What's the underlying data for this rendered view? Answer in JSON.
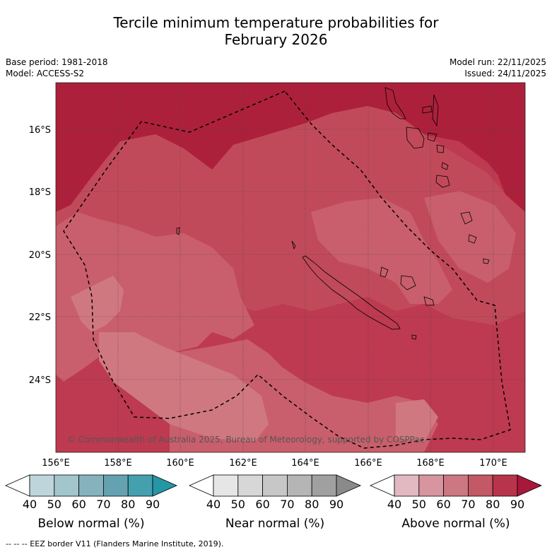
{
  "title": {
    "line1": "Tercile minimum temperature probabilities for",
    "line2": "February 2026"
  },
  "meta": {
    "base_period": "Base period: 1981-2018",
    "model": "Model: ACCESS-S2",
    "model_run": "Model run: 22/11/2025",
    "issued": "Issued: 24/11/2025"
  },
  "map": {
    "lat_labels": [
      "16°S",
      "18°S",
      "20°S",
      "22°S",
      "24°S"
    ],
    "lon_labels": [
      "156°E",
      "158°E",
      "160°E",
      "162°E",
      "164°E",
      "166°E",
      "168°E",
      "170°E"
    ],
    "copyright": "© Commonwealth of Australia 2025, Bureau of Meteorology, supported by COSPPac",
    "colors": {
      "p40_50": "#d8838c",
      "p50_60": "#c95f6c",
      "p60_70": "#c14a5a",
      "p70_80": "#b8354a",
      "p80_90": "#ad203b"
    }
  },
  "colorbars": {
    "tick_values": [
      "40",
      "50",
      "60",
      "70",
      "80",
      "90"
    ],
    "below": {
      "label": "Below normal (%)",
      "colors": [
        "#ffffff",
        "#bed5dc",
        "#a3c5cc",
        "#85b2bd",
        "#65a2b1",
        "#449fae",
        "#2596a6"
      ]
    },
    "near": {
      "label": "Near normal (%)",
      "colors": [
        "#ffffff",
        "#e6e6e6",
        "#d7d7d7",
        "#c7c7c7",
        "#b5b5b5",
        "#a0a0a0",
        "#8a8a8a"
      ]
    },
    "above": {
      "label": "Above normal (%)",
      "colors": [
        "#ffffff",
        "#e2b9c1",
        "#d8959f",
        "#cc7781",
        "#c35866",
        "#b8344b",
        "#a8183a"
      ]
    }
  },
  "footer": {
    "eez_note": "-- -- -- EEZ border V11 (Flanders Marine Institute, 2019)."
  }
}
